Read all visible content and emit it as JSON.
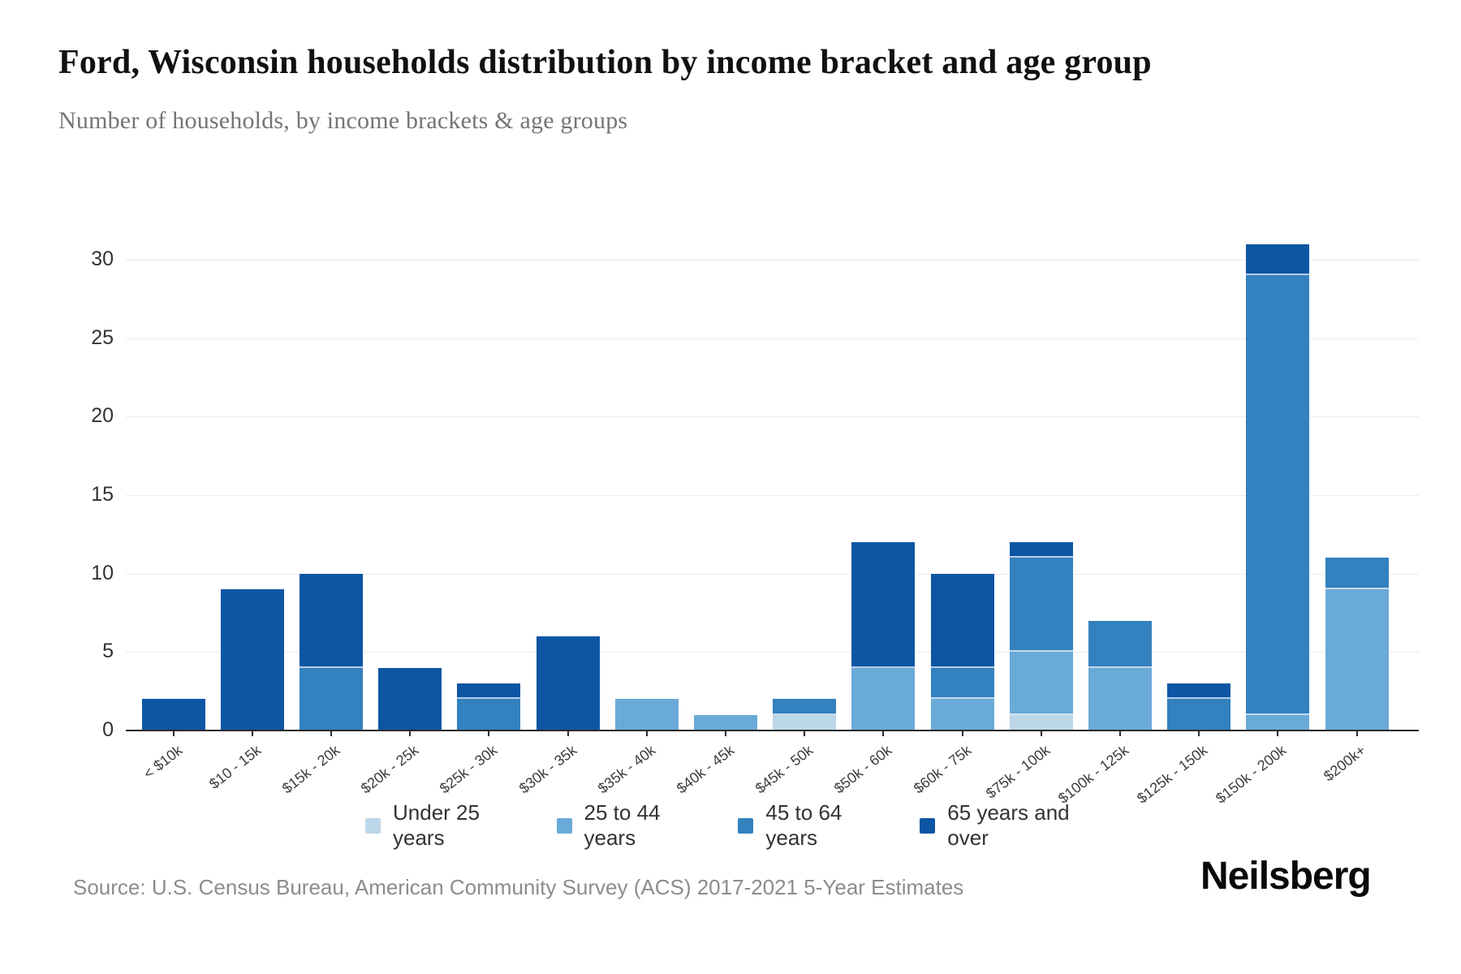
{
  "header": {
    "title": "Ford, Wisconsin households distribution by income bracket and age group",
    "subtitle": "Number of households, by income brackets & age groups"
  },
  "chart_data": {
    "type": "bar",
    "stacked": true,
    "title": "Ford, Wisconsin households distribution by income bracket and age group",
    "subtitle": "Number of households, by income brackets & age groups",
    "xlabel": "",
    "ylabel": "",
    "ylim": [
      0,
      31
    ],
    "y_ticks": [
      0,
      5,
      10,
      15,
      20,
      25,
      30
    ],
    "grid": true,
    "legend_position": "bottom",
    "categories": [
      "< $10k",
      "$10 - 15k",
      "$15k - 20k",
      "$20k - 25k",
      "$25k - 30k",
      "$30k - 35k",
      "$35k - 40k",
      "$40k - 45k",
      "$45k - 50k",
      "$50k - 60k",
      "$60k - 75k",
      "$75k - 100k",
      "$100k - 125k",
      "$125k - 150k",
      "$150k - 200k",
      "$200k+"
    ],
    "series": [
      {
        "name": "Under 25 years",
        "color": "#bdd7ea",
        "values": [
          0,
          0,
          0,
          0,
          0,
          0,
          0,
          0,
          1,
          0,
          0,
          1,
          0,
          0,
          0,
          0
        ]
      },
      {
        "name": "25 to 44 years",
        "color": "#6aaad8",
        "values": [
          0,
          0,
          0,
          0,
          0,
          0,
          2,
          1,
          0,
          4,
          2,
          4,
          4,
          0,
          1,
          9
        ]
      },
      {
        "name": "45 to 64 years",
        "color": "#3381be",
        "values": [
          0,
          0,
          4,
          0,
          2,
          0,
          0,
          0,
          1,
          0,
          2,
          6,
          3,
          2,
          28,
          2
        ]
      },
      {
        "name": "65 years and over",
        "color": "#0d56a4",
        "values": [
          2,
          9,
          6,
          4,
          1,
          6,
          0,
          0,
          0,
          8,
          6,
          1,
          0,
          1,
          2,
          0
        ]
      }
    ],
    "totals": [
      2,
      9,
      10,
      4,
      3,
      6,
      2,
      1,
      2,
      12,
      10,
      12,
      7,
      3,
      31,
      11
    ]
  },
  "footer": {
    "source": "Source: U.S. Census Bureau, American Community Survey (ACS) 2017-2021 5-Year Estimates",
    "brand": "Neilsberg"
  }
}
